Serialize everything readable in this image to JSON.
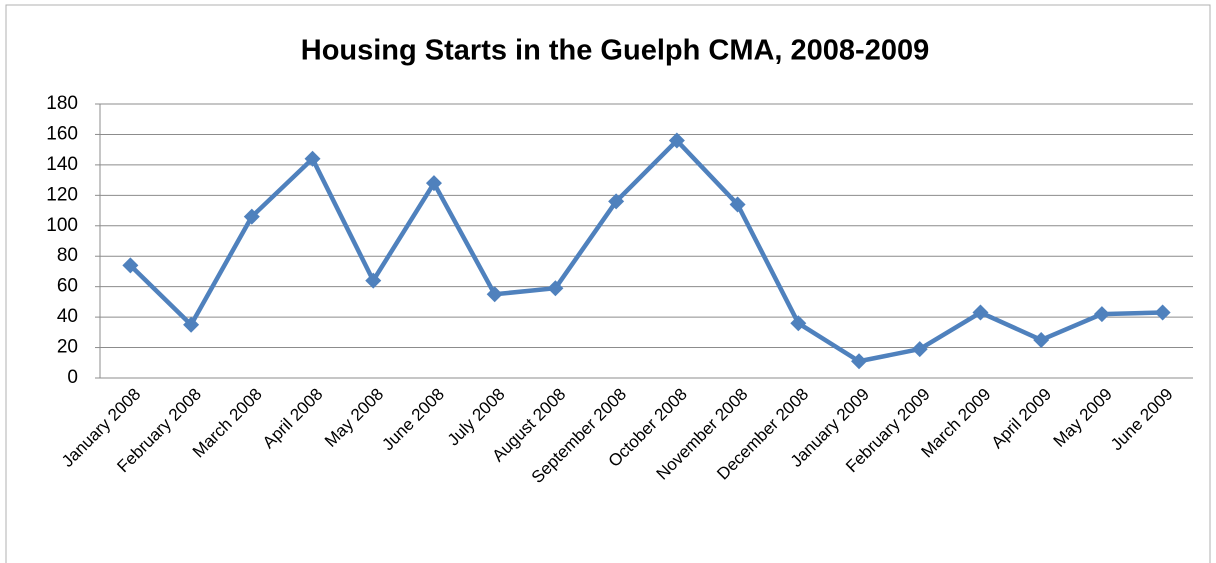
{
  "chart_data": {
    "type": "line",
    "title": "Housing Starts in the Guelph CMA, 2008-2009",
    "categories": [
      "January 2008",
      "February 2008",
      "March 2008",
      "April 2008",
      "May 2008",
      "June 2008",
      "July 2008",
      "August 2008",
      "September 2008",
      "October 2008",
      "November 2008",
      "December 2008",
      "January 2009",
      "February 2009",
      "March 2009",
      "April 2009",
      "May 2009",
      "June 2009"
    ],
    "series": [
      {
        "color": "#4f81bd",
        "values": [
          74,
          35,
          106,
          144,
          64,
          128,
          55,
          59,
          116,
          156,
          114,
          36,
          11,
          19,
          43,
          25,
          42,
          43
        ]
      }
    ],
    "ylim": [
      0,
      180
    ],
    "yticks": [
      0,
      20,
      40,
      60,
      80,
      100,
      120,
      140,
      160,
      180
    ],
    "grid": true
  }
}
